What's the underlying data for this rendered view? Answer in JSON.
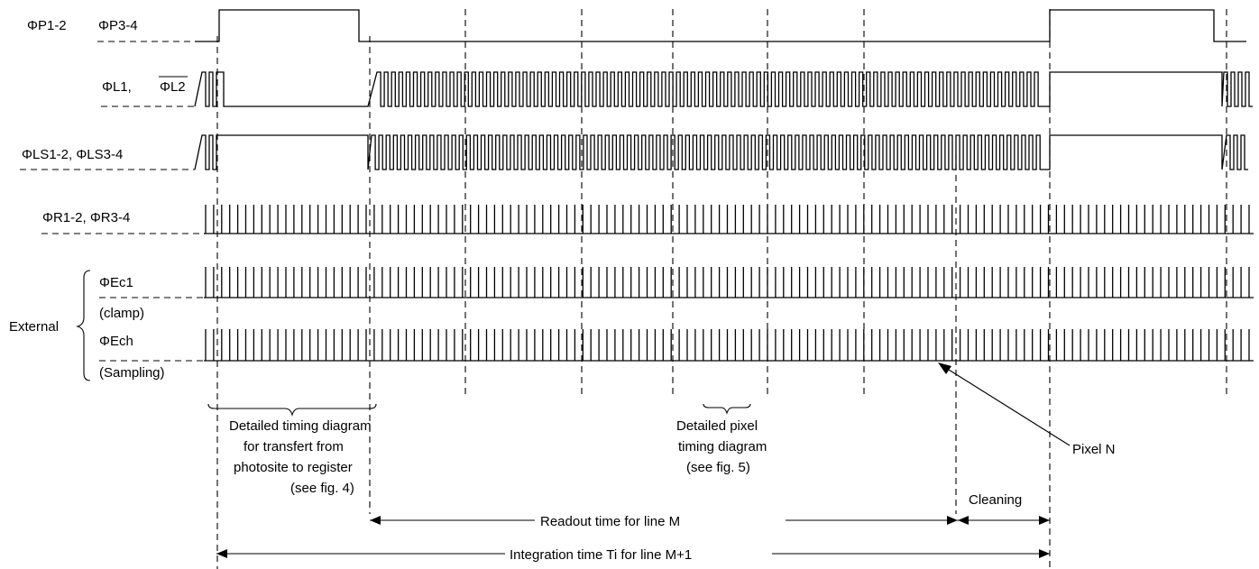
{
  "signals": {
    "p": {
      "label_a": "ΦP1-2",
      "label_b": "ΦP3-4"
    },
    "l": {
      "label_a": "ΦL1, ",
      "label_b": "ΦL2"
    },
    "ls": {
      "label": "ΦLS1-2, ΦLS3-4"
    },
    "r": {
      "label": "ΦR1-2, ΦR3-4"
    },
    "ec1": {
      "label": "ΦEc1",
      "sublabel": "(clamp)"
    },
    "ech": {
      "label": "ΦEch",
      "sublabel": "(Sampling)"
    }
  },
  "group_label": "External",
  "annotations": {
    "transfer": [
      "Detailed timing diagram",
      "for transfert from",
      "photosite to register",
      "(see fig. 4)"
    ],
    "pixel": [
      "Detailed pixel",
      "timing diagram",
      "(see fig. 5)"
    ],
    "pixel_n": "Pixel N",
    "cleaning": "Cleaning",
    "readout": "Readout time for line M",
    "integration": "Integration time Ti for line M+1"
  }
}
